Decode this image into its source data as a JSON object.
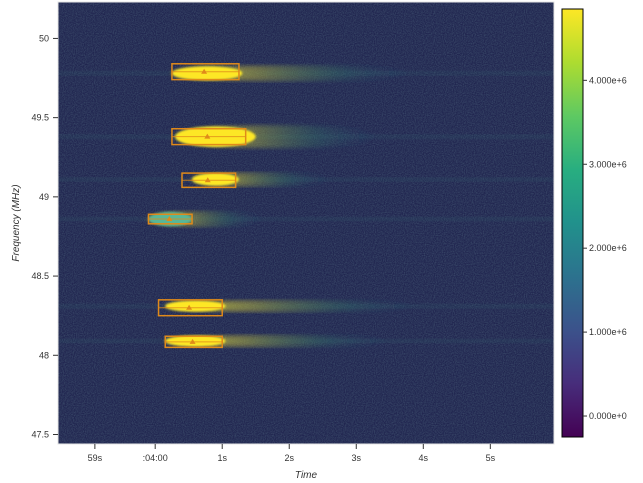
{
  "chart_data": {
    "type": "heatmap",
    "title": "",
    "xlabel": "Time",
    "ylabel": "Frequency (MHz)",
    "x_tick_labels": [
      "59s",
      ":04:00",
      "1s",
      "2s",
      "3s",
      "4s",
      "5s"
    ],
    "x_tick_values": [
      -0.9,
      0.0,
      1.0,
      2.0,
      3.0,
      4.0,
      5.0
    ],
    "xlim": [
      -1.45,
      5.95
    ],
    "y_tick_labels": [
      "47.5",
      "48",
      "48.5",
      "49",
      "49.5",
      "50"
    ],
    "y_tick_values": [
      47.5,
      48.0,
      48.5,
      49.0,
      49.5,
      50.0
    ],
    "ylim": [
      47.44,
      50.23
    ],
    "colorbar": {
      "colormap": "viridis",
      "range": [
        -250000,
        4850000
      ],
      "tick_labels": [
        "0.000e+0",
        "1.000e+6",
        "2.000e+6",
        "3.000e+6",
        "4.000e+6"
      ],
      "tick_values": [
        0,
        1000000,
        2000000,
        3000000,
        4000000
      ]
    },
    "background_level": 600000,
    "signals": [
      {
        "t_start": 0.25,
        "t_end": 1.3,
        "freq": 49.78,
        "bandwidth": 0.09,
        "peak": 4850000,
        "tail_end": 3.8
      },
      {
        "t_start": 0.3,
        "t_end": 1.5,
        "freq": 49.38,
        "bandwidth": 0.13,
        "peak": 4850000,
        "tail_end": 3.3
      },
      {
        "t_start": 0.55,
        "t_end": 1.25,
        "freq": 49.11,
        "bandwidth": 0.08,
        "peak": 4850000,
        "tail_end": 2.6
      },
      {
        "t_start": -0.1,
        "t_end": 0.55,
        "freq": 48.86,
        "bandwidth": 0.09,
        "peak": 2500000,
        "tail_end": 1.6
      },
      {
        "t_start": 0.15,
        "t_end": 1.05,
        "freq": 48.31,
        "bandwidth": 0.07,
        "peak": 4850000,
        "tail_end": 3.9
      },
      {
        "t_start": 0.15,
        "t_end": 1.05,
        "freq": 48.09,
        "bandwidth": 0.07,
        "peak": 4850000,
        "tail_end": 3.5
      }
    ],
    "detections": [
      {
        "t_start": 0.25,
        "t_end": 1.25,
        "f_low": 49.74,
        "f_high": 49.84
      },
      {
        "t_start": 0.25,
        "t_end": 1.35,
        "f_low": 49.33,
        "f_high": 49.43
      },
      {
        "t_start": 0.4,
        "t_end": 1.2,
        "f_low": 49.06,
        "f_high": 49.15
      },
      {
        "t_start": -0.1,
        "t_end": 0.55,
        "f_low": 48.83,
        "f_high": 48.89
      },
      {
        "t_start": 0.05,
        "t_end": 1.0,
        "f_low": 48.25,
        "f_high": 48.35
      },
      {
        "t_start": 0.15,
        "t_end": 1.0,
        "f_low": 48.05,
        "f_high": 48.12
      }
    ],
    "colors": {
      "detection_box": "#e08a1a",
      "hot": "#fde725"
    }
  }
}
